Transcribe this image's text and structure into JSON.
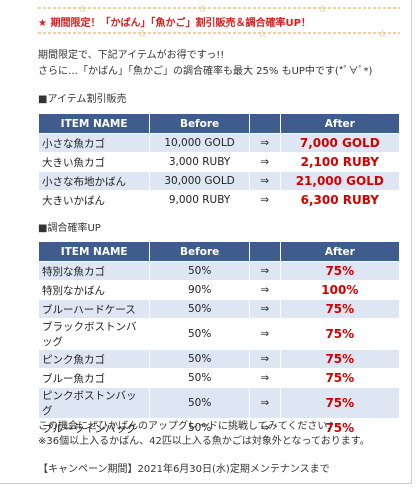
{
  "title": "★ 期間限定！「かばん」「魚かご」割引販売＆調合確率UP！",
  "intro": [
    "期間限定で、下記アイテムがお得ですっ!!",
    "さらに…「かばん」「魚かご」の調合確率も最大 25% もUP中です(*ﾟ∀ﾟ*)"
  ],
  "sale": {
    "heading": "■アイテム割引販売",
    "columns": [
      "ITEM NAME",
      "Before",
      "After"
    ],
    "rows": [
      [
        "小さな魚カゴ",
        "10,000 GOLD",
        "⇒",
        "7,000 GOLD"
      ],
      [
        "大きい魚カゴ",
        "3,000 RUBY",
        "⇒",
        "2,100 RUBY"
      ],
      [
        "小さな布地かばん",
        "30,000 GOLD",
        "⇒",
        "21,000 GOLD"
      ],
      [
        "大きいかばん",
        "9,000 RUBY",
        "⇒",
        "6,300 RUBY"
      ]
    ]
  },
  "rate": {
    "heading": "■調合確率UP",
    "columns": [
      "ITEM NAME",
      "Before",
      "After"
    ],
    "rows": [
      [
        "特別な魚カゴ",
        "50%",
        "⇒",
        "75%"
      ],
      [
        "特別なかばん",
        "90%",
        "⇒",
        "100%"
      ],
      [
        "ブルーハードケース",
        "50%",
        "⇒",
        "75%"
      ],
      [
        "ブラックボストンバッグ",
        "50%",
        "⇒",
        "75%"
      ],
      [
        "ピンク魚カゴ",
        "50%",
        "⇒",
        "75%"
      ],
      [
        "ブルー魚カゴ",
        "50%",
        "⇒",
        "75%"
      ],
      [
        "ピンクボストンバッグ",
        "50%",
        "⇒",
        "75%"
      ],
      [
        "ブルーラインバッグ",
        "50%",
        "⇒",
        "75%"
      ]
    ]
  },
  "footer": [
    "この機会にぜひかばんのアップグレードに挑戦してみてください♪",
    "※36個以上入るかばん、42匹以上入る魚かごは対象外となっております。",
    "【キャンペーン期間】2021年6月30日(水)定期メンテナンスまで"
  ]
}
